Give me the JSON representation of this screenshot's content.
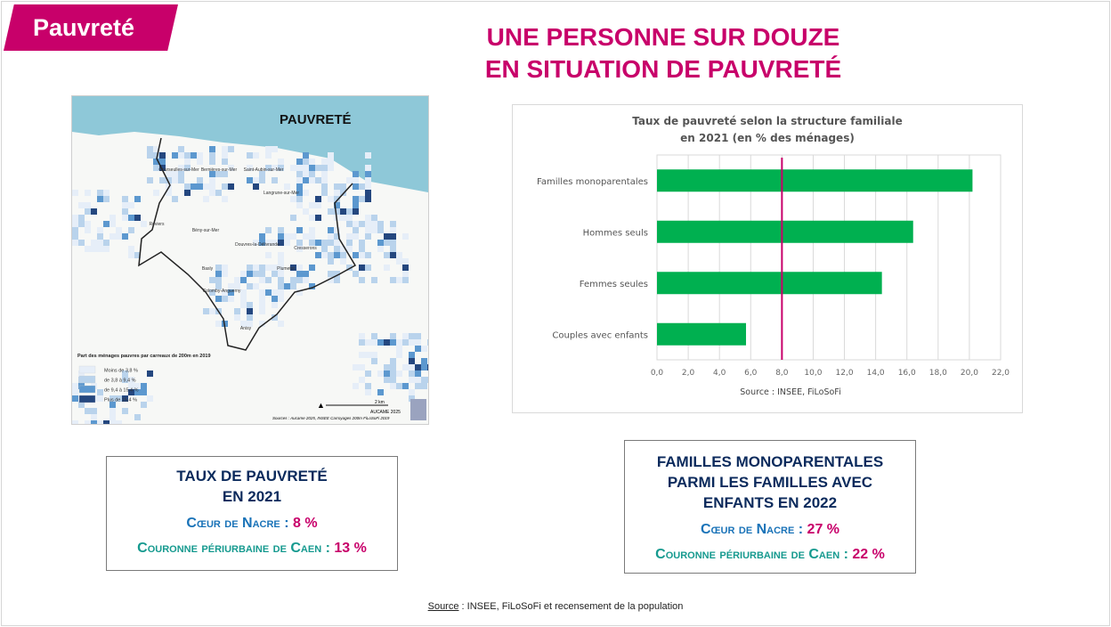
{
  "header": {
    "tag": "Pauvreté",
    "title_line1": "UNE PERSONNE SUR DOUZE",
    "title_line2": "EN SITUATION DE PAUVRETÉ"
  },
  "map": {
    "title": "PAUVRETÉ",
    "legend_title": "Part des ménages pauvres par carreaux de 200m en 2019",
    "legend": [
      {
        "label": "Moins de 3,8 %",
        "color": "#e6eef8"
      },
      {
        "label": "de 3,8 à 9,4 %",
        "color": "#b9d3ec"
      },
      {
        "label": "de 9,4 à 15,4 %",
        "color": "#5c98cf"
      },
      {
        "label": "Plus de 15,4 %",
        "color": "#24477f"
      }
    ],
    "communes": [
      "Courseulles-sur-Mer",
      "Bernières-sur-Mer",
      "Saint-Aubin-sur-Mer",
      "Langrune-sur-Mer",
      "Reviers",
      "Bény-sur-Mer",
      "Douvres-la-Délivrande",
      "Cresserons",
      "Basly",
      "Plumetot",
      "Colomby-Anguerny",
      "Anisy"
    ],
    "scale": "2 km",
    "scale_zero": "0",
    "credit": "AUCAME 2025",
    "sources": "Sources : Aucame 2025, INSEE Carroyages 200m FiLoSoFi 2019",
    "colors": {
      "sea": "#8ec8d8",
      "boundary": "#222222"
    }
  },
  "chart_data": {
    "type": "bar",
    "orientation": "horizontal",
    "title": "Taux de pauvreté selon la structure familiale en 2021 (en % des ménages)",
    "title_line1": "Taux de pauvreté selon la structure familiale",
    "title_line2": "en 2021 (en % des ménages)",
    "categories": [
      "Familles monoparentales",
      "Hommes seuls",
      "Femmes seules",
      "Couples avec enfants"
    ],
    "values": [
      20.2,
      16.4,
      14.4,
      5.7
    ],
    "reference_line": 8.0,
    "xlim": [
      0,
      22
    ],
    "ticks": [
      "0,0",
      "2,0",
      "4,0",
      "6,0",
      "8,0",
      "10,0",
      "12,0",
      "14,0",
      "16,0",
      "18,0",
      "20,0",
      "22,0"
    ],
    "grid": true,
    "bar_color": "#00b050",
    "reference_color": "#c8006a",
    "source": "Source : INSEE, FiLoSoFi"
  },
  "box1": {
    "title1": "TAUX DE PAUVRETÉ",
    "title2": "EN 2021",
    "l1_label": "Cœur de Nacre : ",
    "l1_value": "8 %",
    "l2_label": "Couronne périurbaine de Caen : ",
    "l2_value": "13 %"
  },
  "box2": {
    "title1": "FAMILLES MONOPARENTALES",
    "title2": "PARMI LES FAMILLES AVEC",
    "title3": "ENFANTS EN 2022",
    "l1_label": "Cœur de Nacre : ",
    "l1_value": "27 %",
    "l2_label": "Couronne périurbaine de Caen : ",
    "l2_value": "22 %"
  },
  "footer": {
    "source_label": "Source",
    "source_text": " : INSEE, FiLoSoFi et recensement de la population"
  }
}
